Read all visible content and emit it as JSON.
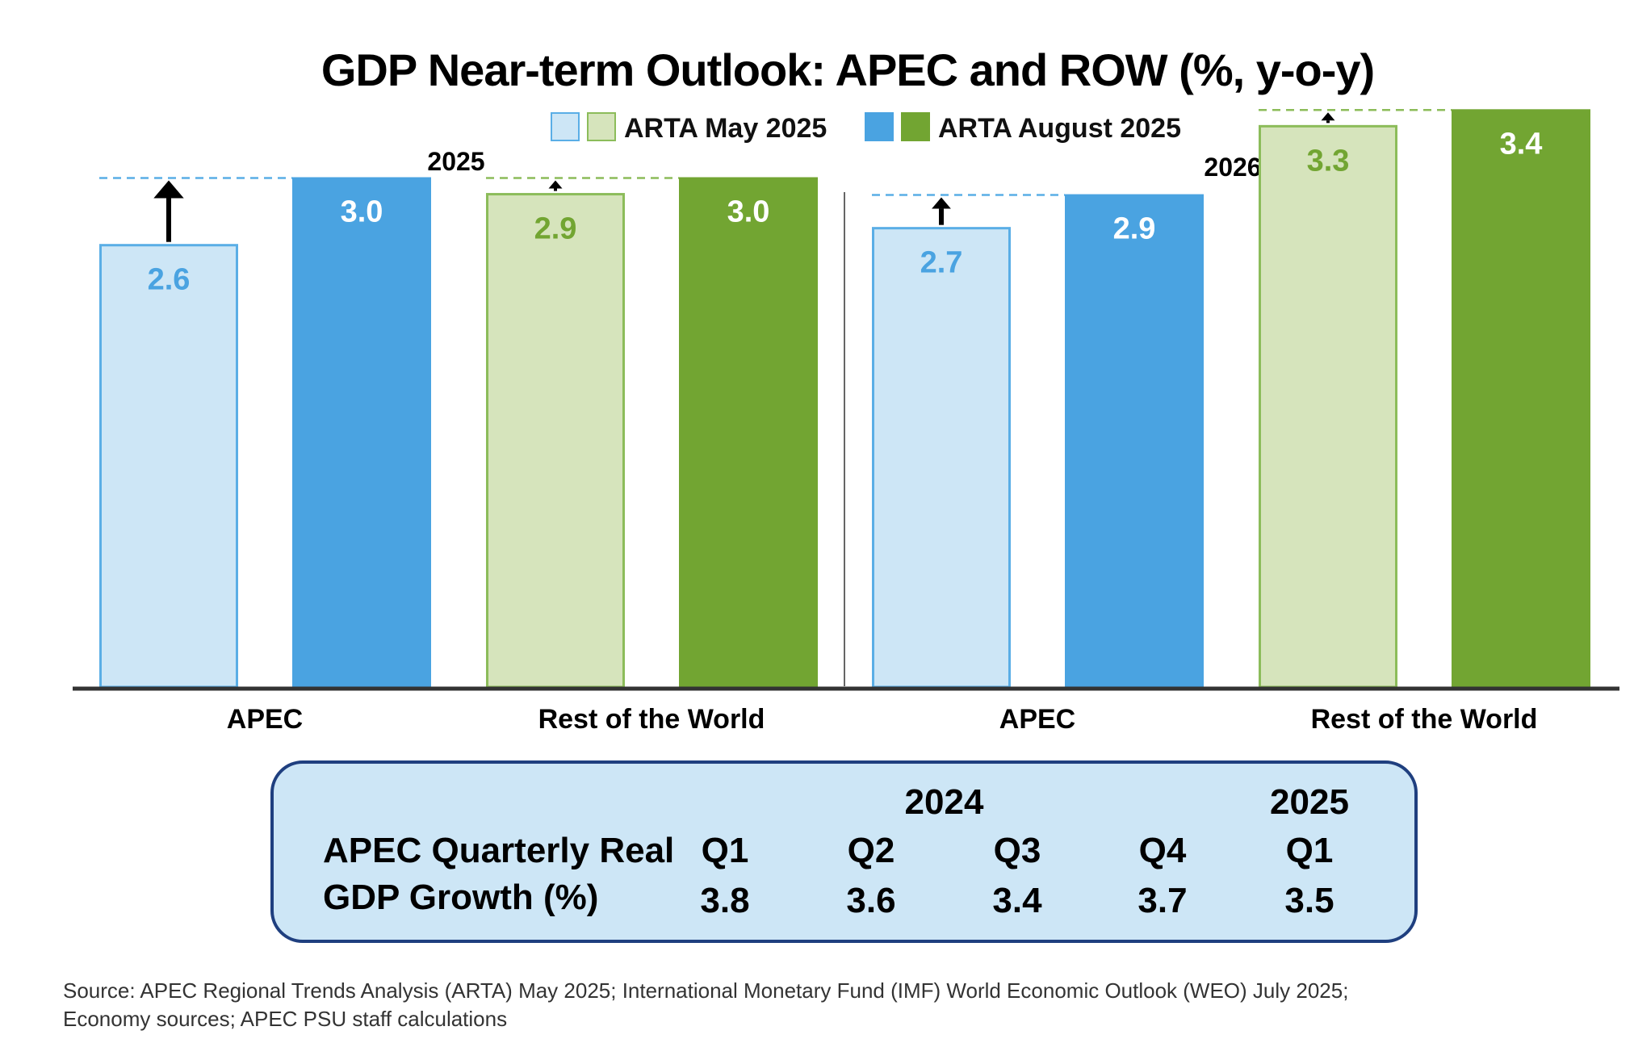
{
  "chart_data": {
    "type": "bar",
    "title": "GDP Near-term Outlook: APEC and ROW (%, y-o-y)",
    "legend": [
      {
        "label": "ARTA May 2025",
        "swatches": [
          "#cde6f6",
          "#d6e4bc"
        ]
      },
      {
        "label": "ARTA August 2025",
        "swatches": [
          "#4aa3e1",
          "#72a532"
        ]
      }
    ],
    "groups": [
      {
        "year": "2025",
        "categories": [
          {
            "label": "APEC",
            "may": 2.6,
            "aug": 3.0,
            "may_label": "2.6",
            "aug_label": "3.0",
            "family": "blue",
            "arrow": "large"
          },
          {
            "label": "Rest of the World",
            "may": 2.9,
            "aug": 3.0,
            "may_label": "2.9",
            "aug_label": "3.0",
            "family": "green",
            "arrow": "small"
          }
        ]
      },
      {
        "year": "2026",
        "categories": [
          {
            "label": "APEC",
            "may": 2.7,
            "aug": 2.9,
            "may_label": "2.7",
            "aug_label": "2.9",
            "family": "blue",
            "arrow": "medium"
          },
          {
            "label": "Rest of the World",
            "may": 3.3,
            "aug": 3.4,
            "may_label": "3.3",
            "aug_label": "3.4",
            "family": "green",
            "arrow": "small"
          }
        ]
      }
    ],
    "colors": {
      "blue_may_fill": "#cde6f6",
      "blue_may_stroke": "#5aaee6",
      "blue_may_text": "#4aa3e1",
      "blue_aug_fill": "#4aa3e1",
      "blue_aug_text": "#ffffff",
      "green_may_fill": "#d6e4bc",
      "green_may_stroke": "#8cbc5a",
      "green_may_text": "#72a532",
      "green_aug_fill": "#72a532",
      "green_aug_text": "#ffffff",
      "blue_dash": "#5aaee6",
      "green_dash": "#8cbc5a"
    }
  },
  "quarterly_panel": {
    "label_line1": "APEC Quarterly Real",
    "label_line2": "GDP Growth (%)",
    "years": [
      {
        "text": "2024",
        "over": 1.5
      },
      {
        "text": "2025",
        "over": 4
      }
    ],
    "quarters": [
      "Q1",
      "Q2",
      "Q3",
      "Q4",
      "Q1"
    ],
    "values": [
      "3.8",
      "3.6",
      "3.4",
      "3.7",
      "3.5"
    ],
    "fill": "#cde6f6",
    "stroke": "#1f3f7f"
  },
  "source": {
    "line1": "Source: APEC Regional Trends Analysis (ARTA) May 2025; International Monetary Fund (IMF) World Economic Outlook (WEO) July 2025;",
    "line2": "Economy sources; APEC PSU staff calculations"
  }
}
